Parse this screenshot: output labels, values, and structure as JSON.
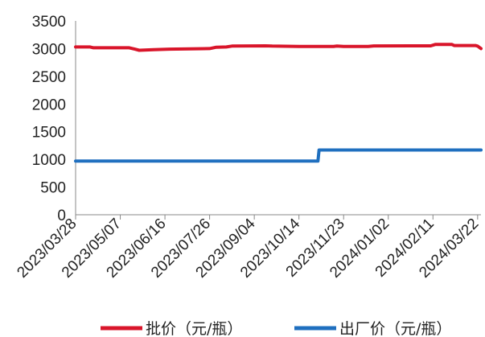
{
  "chart_data": {
    "type": "line",
    "ylim": [
      0,
      3500
    ],
    "y_ticks": [
      "0",
      "500",
      "1000",
      "1500",
      "2000",
      "2500",
      "3000",
      "3500"
    ],
    "x_range": [
      "2023-03-28",
      "2024-03-25"
    ],
    "x_ticks": [
      "2023/03/28",
      "2023/05/07",
      "2023/06/16",
      "2023/07/26",
      "2023/09/04",
      "2023/10/14",
      "2023/11/23",
      "2024/01/02",
      "2024/02/11",
      "2024/03/22"
    ],
    "grid": false,
    "legend_position": "bottom",
    "series": [
      {
        "name": "批价（元/瓶）",
        "color": "#d9152a",
        "points": [
          [
            "2023-03-28",
            3030
          ],
          [
            "2023-04-10",
            3030
          ],
          [
            "2023-04-13",
            3015
          ],
          [
            "2023-05-15",
            3015
          ],
          [
            "2023-05-20",
            2990
          ],
          [
            "2023-05-24",
            2970
          ],
          [
            "2023-06-06",
            2980
          ],
          [
            "2023-06-20",
            2990
          ],
          [
            "2023-07-26",
            3000
          ],
          [
            "2023-08-01",
            3025
          ],
          [
            "2023-08-10",
            3030
          ],
          [
            "2023-08-15",
            3045
          ],
          [
            "2023-09-14",
            3050
          ],
          [
            "2023-09-20",
            3045
          ],
          [
            "2023-10-14",
            3040
          ],
          [
            "2023-11-14",
            3040
          ],
          [
            "2023-11-17",
            3045
          ],
          [
            "2023-11-23",
            3040
          ],
          [
            "2023-12-15",
            3040
          ],
          [
            "2023-12-20",
            3048
          ],
          [
            "2024-02-09",
            3050
          ],
          [
            "2024-02-13",
            3075
          ],
          [
            "2024-02-28",
            3075
          ],
          [
            "2024-03-01",
            3055
          ],
          [
            "2024-03-20",
            3055
          ],
          [
            "2024-03-22",
            3045
          ],
          [
            "2024-03-25",
            3000
          ]
        ]
      },
      {
        "name": "出厂价（元/瓶）",
        "color": "#1f6fbf",
        "points": [
          [
            "2023-03-28",
            969
          ],
          [
            "2023-10-31",
            969
          ],
          [
            "2023-11-01",
            1169
          ],
          [
            "2024-03-25",
            1169
          ]
        ]
      }
    ]
  }
}
